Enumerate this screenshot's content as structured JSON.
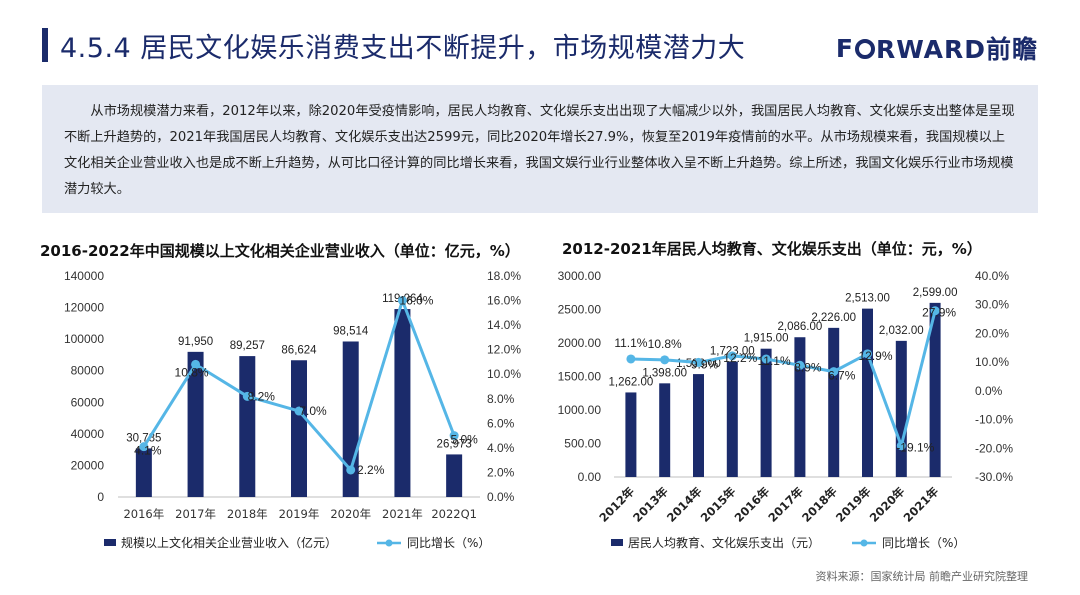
{
  "header": {
    "title": "4.5.4 居民文化娱乐消费支出不断提升，市场规模潜力大",
    "logo_left": "F",
    "logo_right": "RWARD前瞻"
  },
  "summary": {
    "text": "从市场规模潜力来看，2012年以来，除2020年受疫情影响，居民人均教育、文化娱乐支出出现了大幅减少以外，我国居民人均教育、文化娱乐支出整体是呈现不断上升趋势的，2021年我国居民人均教育、文化娱乐支出达2599元，同比2020年增长27.9%，恢复至2019年疫情前的水平。从市场规模来看，我国规模以上文化相关企业营业收入也是成不断上升趋势，从可比口径计算的同比增长来看，我国文娱行业行业整体收入呈不断上升趋势。综上所述，我国文化娱乐行业市场规模潜力较大。"
  },
  "source": "资料来源：国家统计局 前瞻产业研究院整理",
  "colors": {
    "bar": "#1b2b6b",
    "line": "#55b6e6",
    "title": "#1b2b6b"
  },
  "chart_data": [
    {
      "type": "bar",
      "title": "2016-2022年中国规模以上文化相关企业营业收入（单位：亿元，%）",
      "categories": [
        "2016年",
        "2017年",
        "2018年",
        "2019年",
        "2020年",
        "2021年",
        "2022Q1"
      ],
      "series": [
        {
          "name": "规模以上文化相关企业营业收入（亿元）",
          "type": "bar",
          "axis": "left",
          "values": [
            30785,
            91950,
            89257,
            86624,
            98514,
            119064,
            26973
          ],
          "labels": [
            "30,785",
            "91,950",
            "89,257",
            "86,624",
            "98,514",
            "119,064",
            "26,973"
          ]
        },
        {
          "name": "同比增长（%）",
          "type": "line",
          "axis": "right",
          "values": [
            4.1,
            10.8,
            8.2,
            7.0,
            2.2,
            16.0,
            5.0
          ],
          "labels": [
            "4.1%",
            "10.8%",
            "8.2%",
            "7.0%",
            "2.2%",
            "16.0%",
            "5.0%"
          ]
        }
      ],
      "y_left": {
        "min": 0,
        "max": 140000,
        "ticks": [
          "0",
          "20000",
          "40000",
          "60000",
          "80000",
          "100000",
          "120000",
          "140000"
        ]
      },
      "y_right": {
        "min": 0,
        "max": 18,
        "ticks": [
          "0.0%",
          "2.0%",
          "4.0%",
          "6.0%",
          "8.0%",
          "10.0%",
          "12.0%",
          "14.0%",
          "16.0%",
          "18.0%"
        ]
      },
      "legend": [
        "规模以上文化相关企业营业收入（亿元）",
        "同比增长（%）"
      ],
      "legend_position": "bottom",
      "grid": false
    },
    {
      "type": "bar",
      "title": "2012-2021年居民人均教育、文化娱乐支出（单位：元，%）",
      "categories": [
        "2012年",
        "2013年",
        "2014年",
        "2015年",
        "2016年",
        "2017年",
        "2018年",
        "2019年",
        "2020年",
        "2021年"
      ],
      "series": [
        {
          "name": "居民人均教育、文化娱乐支出（元）",
          "type": "bar",
          "axis": "left",
          "values": [
            1262,
            1398,
            1536,
            1723,
            1915,
            2086,
            2226,
            2513,
            2032,
            2599
          ],
          "labels": [
            "1,262.00",
            "1,398.00",
            "1,536.00",
            "1,723.00",
            "1,915.00",
            "2,086.00",
            "2,226.00",
            "2,513.00",
            "2,032.00",
            "2,599.00"
          ]
        },
        {
          "name": "同比增长（%）",
          "type": "line",
          "axis": "right",
          "values": [
            11.1,
            10.8,
            9.9,
            12.2,
            11.1,
            8.9,
            6.7,
            12.9,
            -19.1,
            27.9
          ],
          "labels": [
            "11.1%",
            "10.8%",
            "9.9%",
            "12.2%",
            "11.1%",
            "8.9%",
            "6.7%",
            "12.9%",
            "-19.1%",
            "27.9%"
          ]
        }
      ],
      "y_left": {
        "min": 0,
        "max": 3000,
        "ticks": [
          "0.00",
          "500.00",
          "1000.00",
          "1500.00",
          "2000.00",
          "2500.00",
          "3000.00"
        ]
      },
      "y_right": {
        "min": -30,
        "max": 40,
        "ticks": [
          "-30.0%",
          "-20.0%",
          "-10.0%",
          "0.0%",
          "10.0%",
          "20.0%",
          "30.0%",
          "40.0%"
        ]
      },
      "legend": [
        "居民人均教育、文化娱乐支出（元）",
        "同比增长（%）"
      ],
      "legend_position": "bottom",
      "grid": false
    }
  ]
}
